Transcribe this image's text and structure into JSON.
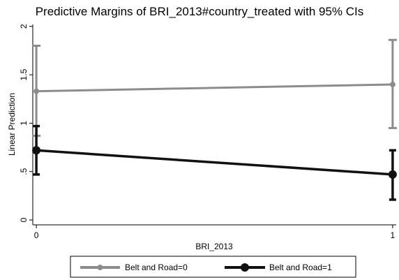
{
  "chart_data": {
    "type": "line",
    "title": "Predictive Margins of BRI_2013#country_treated with 95% CIs",
    "xlabel": "BRI_2013",
    "ylabel": "Linear Prediction",
    "x": [
      0,
      1
    ],
    "x_tick_labels": [
      "0",
      "1"
    ],
    "y_ticks": [
      0,
      0.5,
      1,
      1.5,
      2
    ],
    "y_tick_labels": [
      "0",
      ".5",
      "1",
      "1.5",
      "2"
    ],
    "xlim": [
      -0.01,
      1.01
    ],
    "ylim": [
      -0.05,
      2.02
    ],
    "grid": false,
    "legend_position": "bottom",
    "series": [
      {
        "name": "Belt and Road=0",
        "color": "#8c8c8c",
        "y": [
          1.33,
          1.4
        ],
        "ci_low": [
          0.87,
          0.95
        ],
        "ci_high": [
          1.8,
          1.86
        ]
      },
      {
        "name": "Belt and Road=1",
        "color": "#111111",
        "y": [
          0.72,
          0.47
        ],
        "ci_low": [
          0.47,
          0.21
        ],
        "ci_high": [
          0.97,
          0.72
        ]
      }
    ]
  }
}
